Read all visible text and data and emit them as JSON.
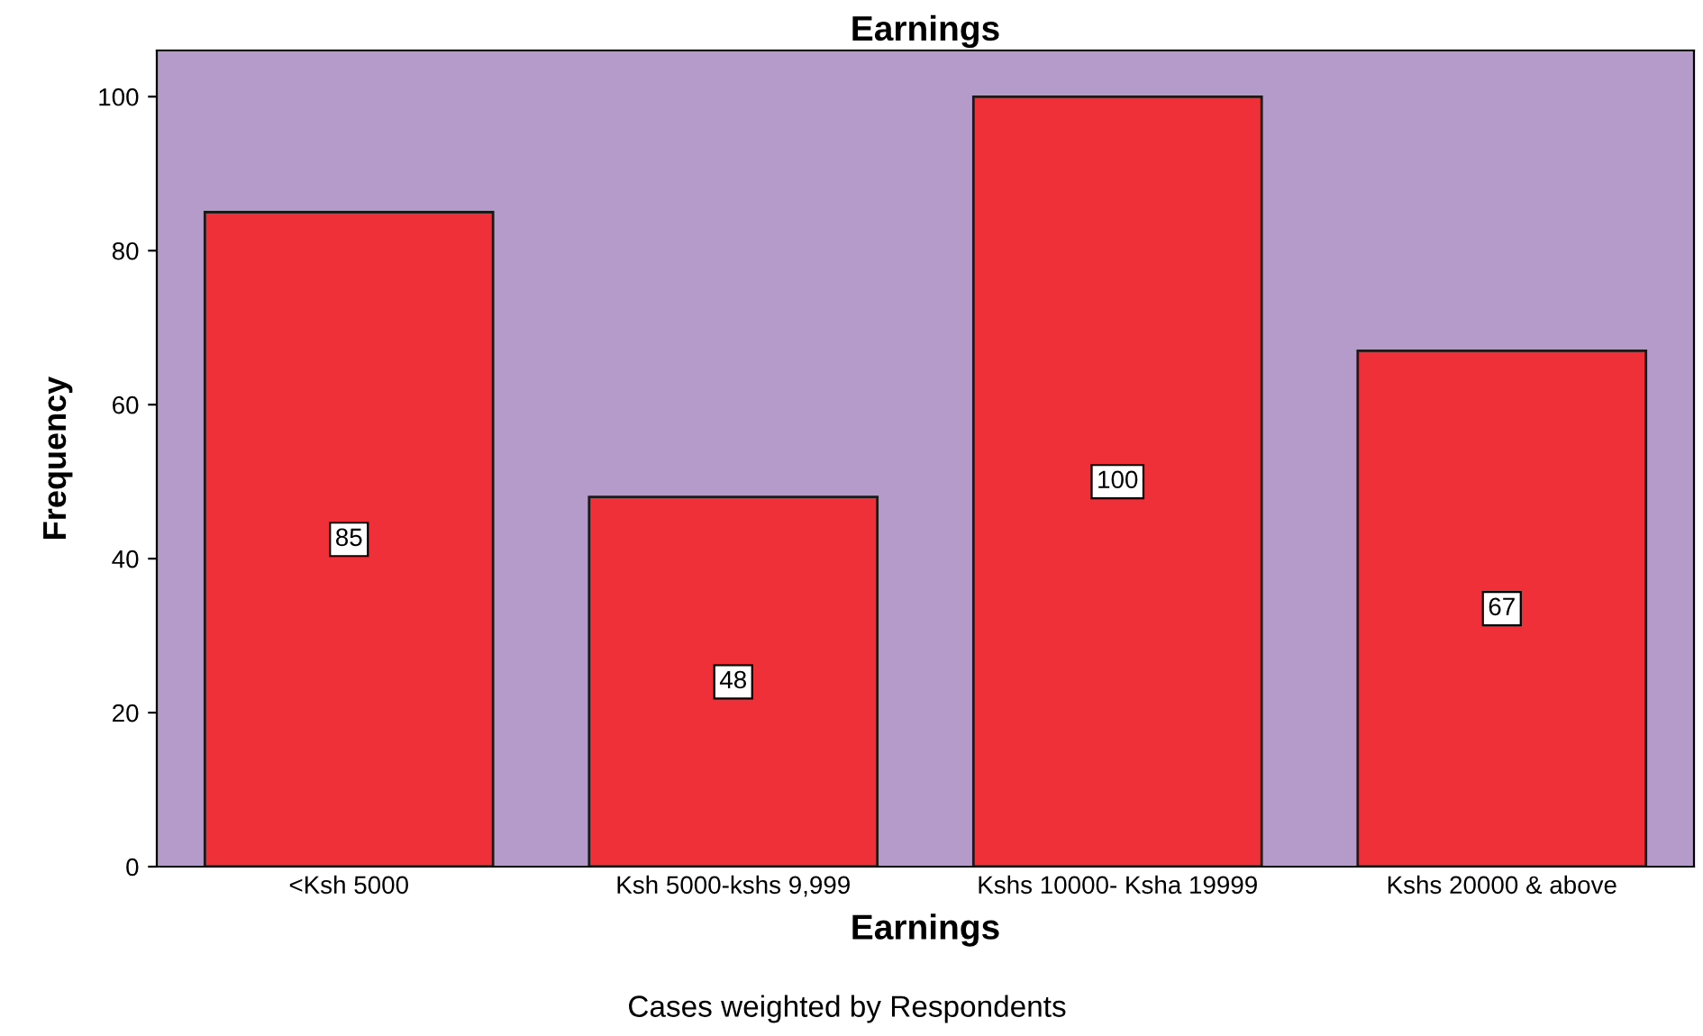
{
  "chart_data": {
    "type": "bar",
    "title": "Earnings",
    "xlabel": "Earnings",
    "ylabel": "Frequency",
    "categories": [
      "<Ksh 5000",
      "Ksh 5000-kshs 9,999",
      "Kshs 10000- Ksha 19999",
      "Kshs 20000 & above"
    ],
    "values": [
      85,
      48,
      100,
      67
    ],
    "color": "#ef3039",
    "bands": [
      {
        "axis": "y",
        "from": 0,
        "to": 106,
        "color": "#b59bc9"
      }
    ],
    "ylim": [
      0,
      106
    ],
    "yticks": [
      0,
      20,
      40,
      60,
      80,
      100
    ],
    "grid": false,
    "data_labels": true,
    "annotations": [
      "Cases weighted by Respondents"
    ]
  }
}
